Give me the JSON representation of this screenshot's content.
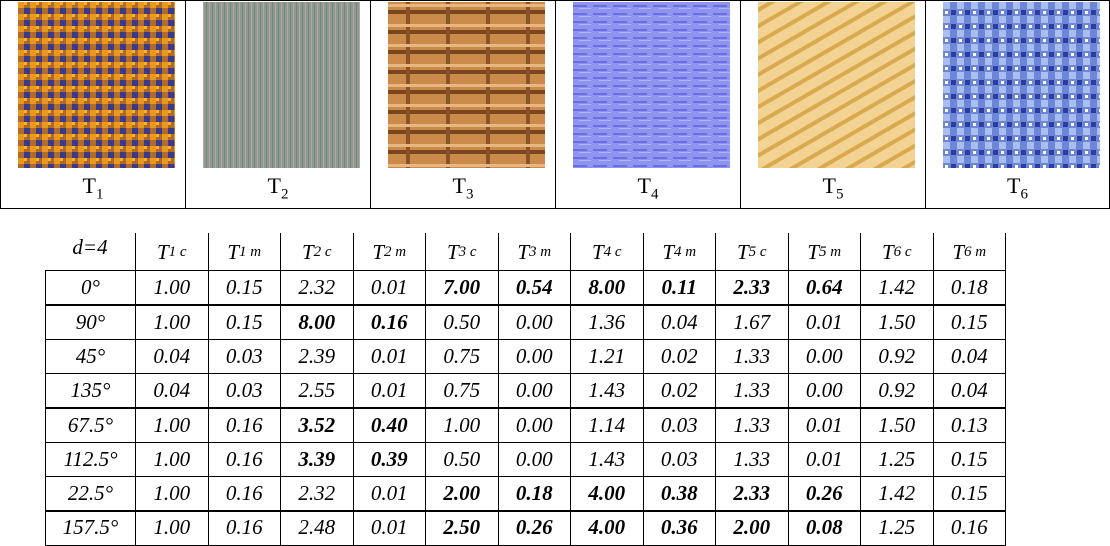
{
  "textures": [
    {
      "label": "T",
      "sub": "1"
    },
    {
      "label": "T",
      "sub": "2"
    },
    {
      "label": "T",
      "sub": "3"
    },
    {
      "label": "T",
      "sub": "4"
    },
    {
      "label": "T",
      "sub": "5"
    },
    {
      "label": "T",
      "sub": "6"
    }
  ],
  "table": {
    "corner": "d=4",
    "columns": [
      {
        "label": "T",
        "sub": "1 c"
      },
      {
        "label": "T",
        "sub": "1 m"
      },
      {
        "label": "T",
        "sub": "2 c"
      },
      {
        "label": "T",
        "sub": "2 m"
      },
      {
        "label": "T",
        "sub": "3 c"
      },
      {
        "label": "T",
        "sub": "3 m"
      },
      {
        "label": "T",
        "sub": "4 c"
      },
      {
        "label": "T",
        "sub": "4 m"
      },
      {
        "label": "T",
        "sub": "5 c"
      },
      {
        "label": "T",
        "sub": "5 m"
      },
      {
        "label": "T",
        "sub": "6 c"
      },
      {
        "label": "T",
        "sub": "6 m"
      }
    ],
    "rows": [
      {
        "angle": "0°",
        "cells": [
          "1.00",
          "0.15",
          "2.32",
          "0.01",
          "7.00",
          "0.54",
          "8.00",
          "0.11",
          "2.33",
          "0.64",
          "1.42",
          "0.18"
        ],
        "bold": [
          4,
          5,
          6,
          7,
          8,
          9
        ]
      },
      {
        "angle": "90°",
        "cells": [
          "1.00",
          "0.15",
          "8.00",
          "0.16",
          "0.50",
          "0.00",
          "1.36",
          "0.04",
          "1.67",
          "0.01",
          "1.50",
          "0.15"
        ],
        "bold": [
          2,
          3
        ]
      },
      {
        "angle": "45°",
        "cells": [
          "0.04",
          "0.03",
          "2.39",
          "0.01",
          "0.75",
          "0.00",
          "1.21",
          "0.02",
          "1.33",
          "0.00",
          "0.92",
          "0.04"
        ],
        "bold": []
      },
      {
        "angle": "135°",
        "cells": [
          "0.04",
          "0.03",
          "2.55",
          "0.01",
          "0.75",
          "0.00",
          "1.43",
          "0.02",
          "1.33",
          "0.00",
          "0.92",
          "0.04"
        ],
        "bold": []
      },
      {
        "angle": "67.5°",
        "cells": [
          "1.00",
          "0.16",
          "3.52",
          "0.40",
          "1.00",
          "0.00",
          "1.14",
          "0.03",
          "1.33",
          "0.01",
          "1.50",
          "0.13"
        ],
        "bold": [
          2,
          3
        ]
      },
      {
        "angle": "112.5°",
        "cells": [
          "1.00",
          "0.16",
          "3.39",
          "0.39",
          "0.50",
          "0.00",
          "1.43",
          "0.03",
          "1.33",
          "0.01",
          "1.25",
          "0.15"
        ],
        "bold": [
          2,
          3
        ]
      },
      {
        "angle": "22.5°",
        "cells": [
          "1.00",
          "0.16",
          "2.32",
          "0.01",
          "2.00",
          "0.18",
          "4.00",
          "0.38",
          "2.33",
          "0.26",
          "1.42",
          "0.15"
        ],
        "bold": [
          4,
          5,
          6,
          7,
          8,
          9
        ]
      },
      {
        "angle": "157.5°",
        "cells": [
          "1.00",
          "0.16",
          "2.48",
          "0.01",
          "2.50",
          "0.26",
          "4.00",
          "0.36",
          "2.00",
          "0.08",
          "1.25",
          "0.16"
        ],
        "bold": [
          4,
          5,
          6,
          7,
          8,
          9
        ]
      }
    ]
  }
}
